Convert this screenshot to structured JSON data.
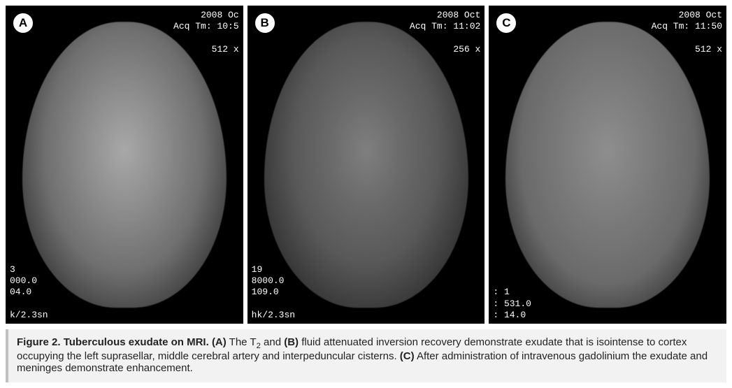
{
  "figure": {
    "label": "Figure 2.",
    "title": "Tuberculous exudate on MRI.",
    "panels": [
      {
        "letter": "A",
        "top_right_line1": "2008 Oc",
        "top_right_line2": "Acq Tm: 10:5",
        "top_right_line3": "512 x",
        "bottom_left_line1": "3",
        "bottom_left_line2": "000.0",
        "bottom_left_line3": "04.0",
        "bottom_left_line4": "k/2.3sn",
        "style_variant": "lighter"
      },
      {
        "letter": "B",
        "top_right_line1": "2008 Oct",
        "top_right_line2": "Acq Tm: 11:02",
        "top_right_line3": "256 x",
        "bottom_left_line1": "19",
        "bottom_left_line2": "8000.0",
        "bottom_left_line3": "109.0",
        "bottom_left_line4": "hk/2.3sn",
        "style_variant": "brain-placeholder"
      },
      {
        "letter": "C",
        "top_right_line1": "2008 Oct",
        "top_right_line2": "Acq Tm: 11:50",
        "top_right_line3": "512 x",
        "bottom_left_line1": ": 1",
        "bottom_left_line2": ": 531.0",
        "bottom_left_line3": ": 14.0",
        "bottom_left_line4": "",
        "style_variant": "flat"
      }
    ],
    "caption_a_pre": " The T",
    "caption_a_sub": "2",
    "caption_a_post": " and ",
    "caption_b": " fluid attenuated inversion recovery demonstrate exudate that is isointense to cortex occupying the left suprasellar, middle cerebral artery and interpeduncular cisterns. ",
    "caption_c": " After administration of intravenous gadolinium the exudate and meninges demonstrate enhancement.",
    "letter_a": "(A)",
    "letter_b": "(B)",
    "letter_c": "(C)"
  },
  "colors": {
    "panel_bg": "#000000",
    "badge_bg": "#ffffff",
    "overlay_text": "#ffffff",
    "caption_bg": "#f2f2f2",
    "caption_border": "#c0c0c0",
    "caption_text": "#222222"
  }
}
